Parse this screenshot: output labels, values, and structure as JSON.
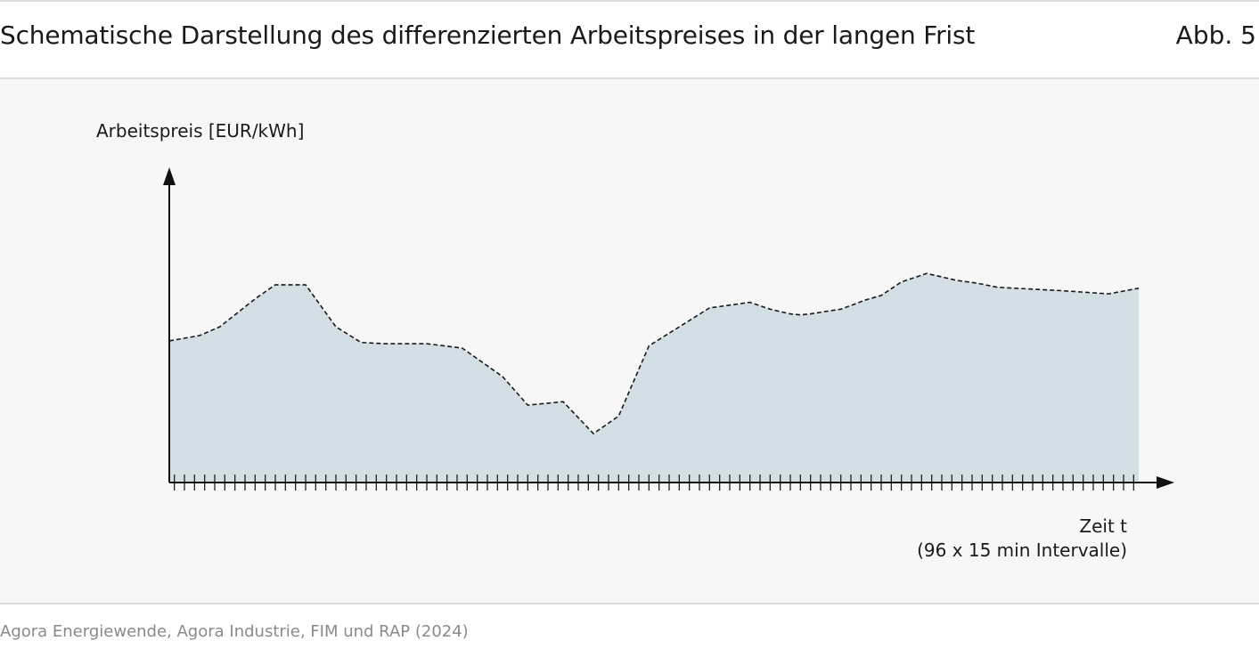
{
  "header": {
    "title": "Schematische Darstellung des differenzierten Arbeitspreises in der langen Frist",
    "figure_number": "Abb. 5"
  },
  "footer": {
    "source": "Agora Energiewende, Agora Industrie, FIM und RAP (2024)"
  },
  "colors": {
    "area_fill": "#d3dee5",
    "line": "#1a1a1a",
    "panel_background": "#f7f7f7"
  },
  "chart_data": {
    "type": "area",
    "title": "",
    "ylabel": "Arbeitspreis [EUR/kWh]",
    "xlabel_line1": "Zeit t",
    "xlabel_line2": "(96 x 15 min Intervalle)",
    "interval_count": 96,
    "xlim": [
      0,
      96
    ],
    "ylim": [
      0,
      1
    ],
    "y_ticks_shown": false,
    "grid": false,
    "legend": "none",
    "line_style": "dashed",
    "series": [
      {
        "x": [
          0,
          3,
          5,
          8.5,
          10.5,
          13.5,
          16.5,
          19,
          21.5,
          25.5,
          29,
          33,
          35.5,
          39,
          42,
          44.5,
          47.5,
          53.5,
          57.5,
          59.5,
          61.5,
          62.5,
          63.5,
          65,
          66.5,
          69,
          70.5,
          72.5,
          75,
          78,
          80,
          82,
          88.5,
          93,
          96
        ],
        "values": [
          0.452,
          0.469,
          0.497,
          0.586,
          0.631,
          0.631,
          0.497,
          0.447,
          0.443,
          0.443,
          0.429,
          0.338,
          0.247,
          0.258,
          0.156,
          0.212,
          0.436,
          0.557,
          0.575,
          0.553,
          0.538,
          0.535,
          0.538,
          0.546,
          0.553,
          0.583,
          0.597,
          0.64,
          0.667,
          0.645,
          0.636,
          0.623,
          0.612,
          0.602,
          0.62
        ]
      }
    ]
  }
}
